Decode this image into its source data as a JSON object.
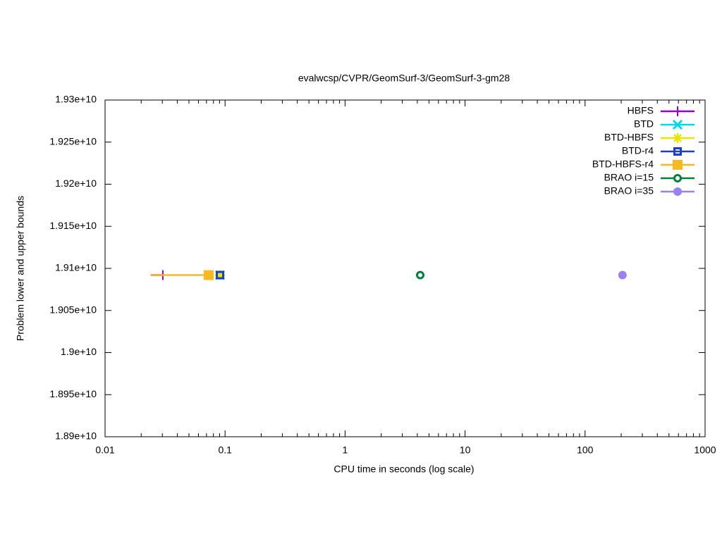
{
  "chart_data": {
    "type": "line",
    "title": "evalwcsp/CVPR/GeomSurf-3/GeomSurf-3-gm28",
    "xlabel": "CPU time in seconds (log scale)",
    "ylabel": "Problem lower and upper bounds",
    "xscale": "log",
    "xlim": [
      0.01,
      1000
    ],
    "xticks": [
      0.01,
      0.1,
      1,
      10,
      100,
      1000
    ],
    "ylim": [
      18900000000,
      19300000000
    ],
    "yticks": [
      {
        "value": 18900000000,
        "label": "1.89e+10"
      },
      {
        "value": 18950000000,
        "label": "1.895e+10"
      },
      {
        "value": 19000000000,
        "label": "1.9e+10"
      },
      {
        "value": 19050000000,
        "label": "1.905e+10"
      },
      {
        "value": 19100000000,
        "label": "1.91e+10"
      },
      {
        "value": 19150000000,
        "label": "1.915e+10"
      },
      {
        "value": 19200000000,
        "label": "1.92e+10"
      },
      {
        "value": 19250000000,
        "label": "1.925e+10"
      },
      {
        "value": 19300000000,
        "label": "1.93e+10"
      }
    ],
    "legend": "upper right",
    "series": [
      {
        "name": "HBFS",
        "color": "#9400d3",
        "marker": "plus",
        "x": [
          0.024,
          0.0303
        ],
        "values": [
          19092000000,
          19092000000
        ]
      },
      {
        "name": "BTD",
        "color": "#00d8e8",
        "marker": "cross",
        "x": [
          0.0908
        ],
        "values": [
          19092000000
        ]
      },
      {
        "name": "BTD-HBFS",
        "color": "#e6e600",
        "marker": "star",
        "x": [
          0.0908
        ],
        "values": [
          19092000000
        ]
      },
      {
        "name": "BTD-r4",
        "color": "#1a3fc0",
        "marker": "open-square",
        "x": [
          0.0908
        ],
        "values": [
          19092000000
        ]
      },
      {
        "name": "BTD-HBFS-r4",
        "color": "#f8b820",
        "marker": "square",
        "x": [
          0.024,
          0.073
        ],
        "values": [
          19092000000,
          19092000000
        ]
      },
      {
        "name": "BRAO i=15",
        "color": "#007f3f",
        "marker": "open-circle",
        "x": [
          4.23
        ],
        "values": [
          19092000000
        ]
      },
      {
        "name": "BRAO i=35",
        "color": "#9a80f0",
        "marker": "circle",
        "x": [
          205
        ],
        "values": [
          19092000000
        ]
      }
    ]
  }
}
